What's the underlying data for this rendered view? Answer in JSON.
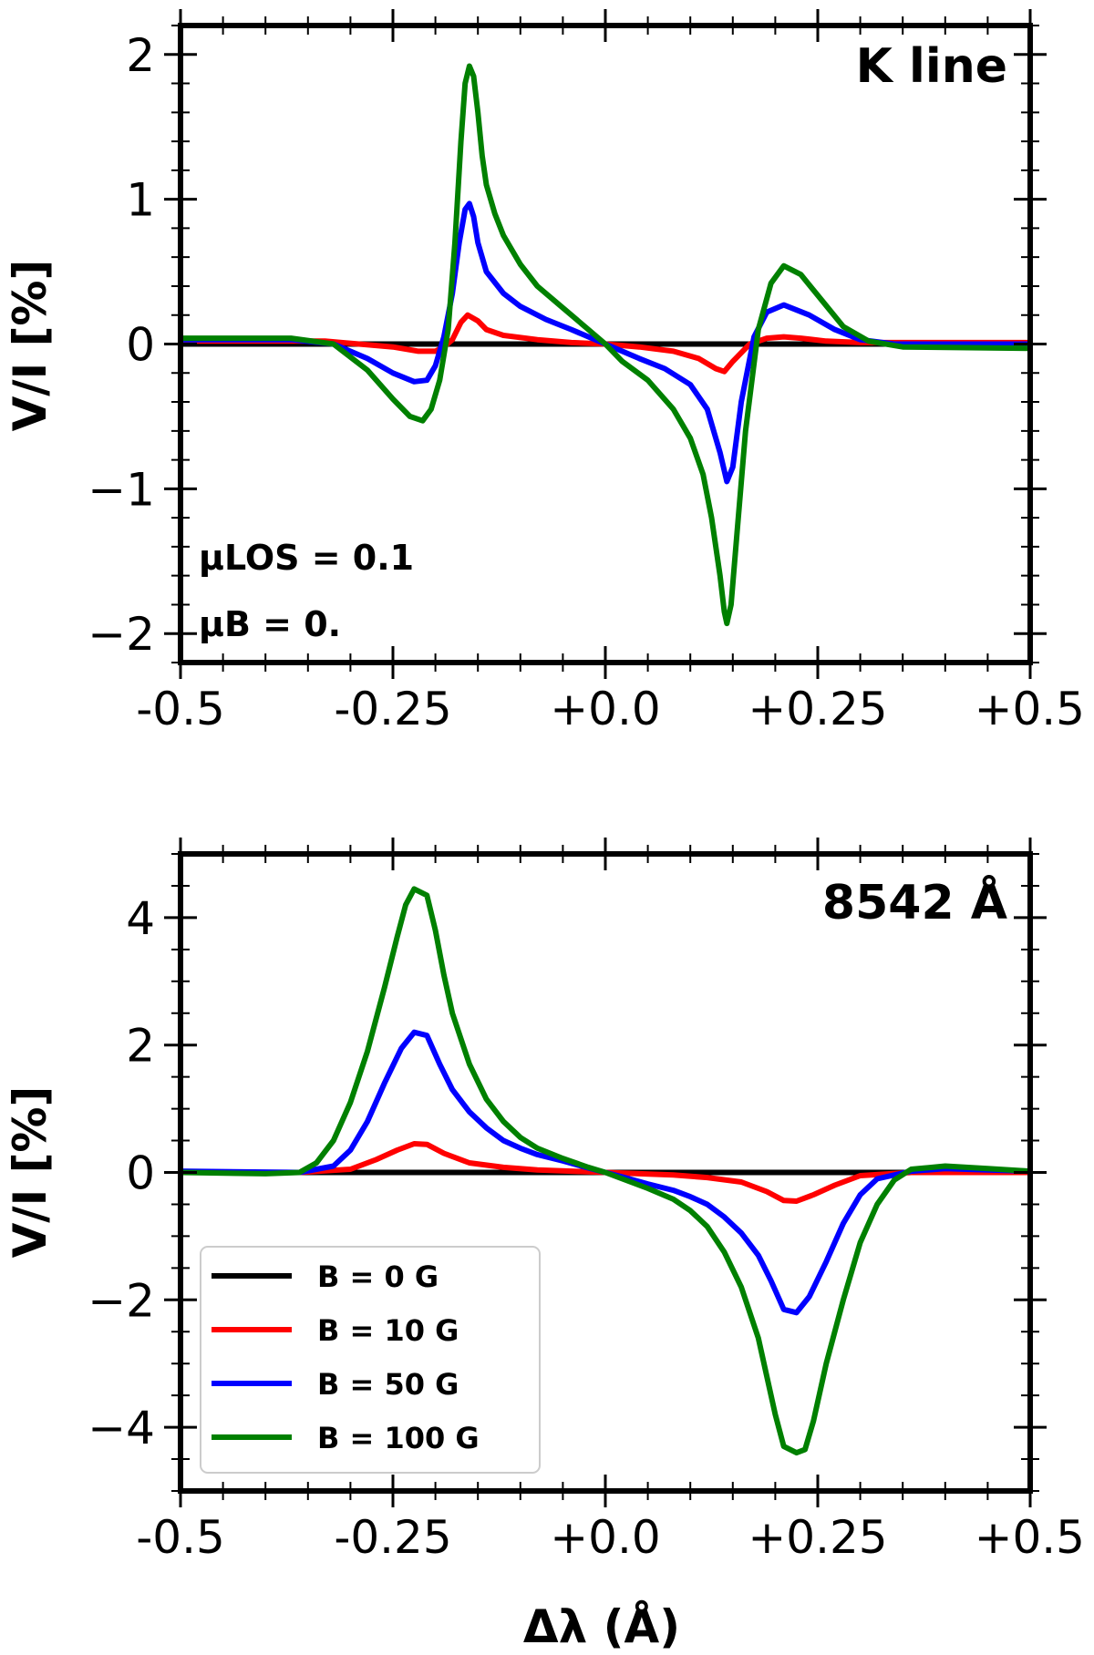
{
  "figure": {
    "xlabel": "Δλ (Å)"
  },
  "legend_entries": [
    {
      "label": "B = 0 G",
      "color": "#000000"
    },
    {
      "label": "B = 10 G",
      "color": "#ff0000"
    },
    {
      "label": "B = 50 G",
      "color": "#0000ff"
    },
    {
      "label": "B = 100 G",
      "color": "#008000"
    }
  ],
  "chart_data": [
    {
      "type": "line",
      "title": "K line",
      "annotations": [
        "μLOS = 0.1",
        "μB = 0."
      ],
      "xlabel": "",
      "ylabel": "V/I [%]",
      "xlim": [
        -0.5,
        0.5
      ],
      "ylim": [
        -2.2,
        2.2
      ],
      "xticks": [
        -0.5,
        -0.25,
        0.0,
        0.25,
        0.5
      ],
      "xtick_labels": [
        "-0.5",
        "-0.25",
        "+0.0",
        "+0.25",
        "+0.5"
      ],
      "yticks": [
        -2,
        -1,
        0,
        1,
        2
      ],
      "ytick_labels": [
        "−2",
        "−1",
        "0",
        "1",
        "2"
      ],
      "minor_y_step": 0.2,
      "minor_x_step": 0.05,
      "series": [
        {
          "name": "B = 0 G",
          "color": "#000000",
          "x": [
            -0.5,
            0.5
          ],
          "y": [
            0,
            0
          ]
        },
        {
          "name": "B = 10 G",
          "color": "#ff0000",
          "x": [
            -0.5,
            -0.33,
            -0.29,
            -0.25,
            -0.22,
            -0.2,
            -0.19,
            -0.18,
            -0.17,
            -0.162,
            -0.15,
            -0.14,
            -0.12,
            -0.08,
            -0.04,
            0,
            0.04,
            0.08,
            0.11,
            0.13,
            0.14,
            0.15,
            0.17,
            0.19,
            0.21,
            0.23,
            0.26,
            0.3,
            0.5
          ],
          "y": [
            0.02,
            0.02,
            0.0,
            -0.02,
            -0.05,
            -0.05,
            -0.02,
            0.03,
            0.15,
            0.2,
            0.16,
            0.1,
            0.06,
            0.03,
            0.01,
            0,
            -0.02,
            -0.05,
            -0.1,
            -0.17,
            -0.19,
            -0.12,
            0.0,
            0.04,
            0.05,
            0.04,
            0.02,
            0.01,
            0.01
          ]
        },
        {
          "name": "B = 50 G",
          "color": "#0000ff",
          "x": [
            -0.5,
            -0.37,
            -0.32,
            -0.28,
            -0.25,
            -0.225,
            -0.21,
            -0.2,
            -0.19,
            -0.18,
            -0.172,
            -0.165,
            -0.16,
            -0.155,
            -0.15,
            -0.14,
            -0.12,
            -0.1,
            -0.07,
            -0.04,
            0,
            0.04,
            0.07,
            0.1,
            0.12,
            0.135,
            0.143,
            0.15,
            0.16,
            0.175,
            0.19,
            0.21,
            0.24,
            0.27,
            0.3,
            0.34,
            0.5
          ],
          "y": [
            0.03,
            0.03,
            0.0,
            -0.1,
            -0.2,
            -0.26,
            -0.25,
            -0.15,
            0.05,
            0.35,
            0.7,
            0.93,
            0.97,
            0.88,
            0.7,
            0.5,
            0.35,
            0.26,
            0.17,
            0.1,
            0,
            -0.1,
            -0.17,
            -0.28,
            -0.45,
            -0.75,
            -0.95,
            -0.85,
            -0.4,
            0.05,
            0.22,
            0.27,
            0.2,
            0.1,
            0.03,
            0.0,
            0.0
          ]
        },
        {
          "name": "B = 100 G",
          "color": "#008000",
          "x": [
            -0.5,
            -0.37,
            -0.32,
            -0.28,
            -0.25,
            -0.23,
            -0.215,
            -0.205,
            -0.195,
            -0.185,
            -0.177,
            -0.17,
            -0.165,
            -0.16,
            -0.155,
            -0.15,
            -0.145,
            -0.14,
            -0.13,
            -0.12,
            -0.1,
            -0.08,
            -0.05,
            -0.02,
            0,
            0.02,
            0.05,
            0.08,
            0.1,
            0.115,
            0.125,
            0.135,
            0.14,
            0.143,
            0.148,
            0.155,
            0.165,
            0.18,
            0.195,
            0.21,
            0.23,
            0.255,
            0.28,
            0.31,
            0.35,
            0.5
          ],
          "y": [
            0.04,
            0.04,
            0.0,
            -0.18,
            -0.38,
            -0.5,
            -0.53,
            -0.45,
            -0.25,
            0.1,
            0.7,
            1.4,
            1.8,
            1.92,
            1.85,
            1.6,
            1.3,
            1.1,
            0.9,
            0.75,
            0.55,
            0.4,
            0.25,
            0.1,
            0,
            -0.12,
            -0.25,
            -0.45,
            -0.65,
            -0.9,
            -1.2,
            -1.6,
            -1.85,
            -1.93,
            -1.8,
            -1.3,
            -0.6,
            0.1,
            0.42,
            0.54,
            0.48,
            0.3,
            0.12,
            0.02,
            -0.02,
            -0.03
          ]
        }
      ]
    },
    {
      "type": "line",
      "title": "8542 Å",
      "xlabel": "Δλ (Å)",
      "ylabel": "V/I [%]",
      "xlim": [
        -0.5,
        0.5
      ],
      "ylim": [
        -5,
        5
      ],
      "xticks": [
        -0.5,
        -0.25,
        0.0,
        0.25,
        0.5
      ],
      "xtick_labels": [
        "-0.5",
        "-0.25",
        "+0.0",
        "+0.25",
        "+0.5"
      ],
      "yticks": [
        -4,
        -2,
        0,
        2,
        4
      ],
      "ytick_labels": [
        "−4",
        "−2",
        "0",
        "2",
        "4"
      ],
      "minor_y_step": 0.5,
      "minor_x_step": 0.05,
      "series": [
        {
          "name": "B = 0 G",
          "color": "#000000",
          "x": [
            -0.5,
            0.5
          ],
          "y": [
            0,
            0
          ]
        },
        {
          "name": "B = 10 G",
          "color": "#ff0000",
          "x": [
            -0.5,
            -0.36,
            -0.3,
            -0.27,
            -0.245,
            -0.225,
            -0.21,
            -0.19,
            -0.16,
            -0.12,
            -0.08,
            -0.04,
            0,
            0.04,
            0.08,
            0.12,
            0.16,
            0.19,
            0.21,
            0.225,
            0.245,
            0.27,
            0.3,
            0.36,
            0.5
          ],
          "y": [
            0.0,
            0.0,
            0.05,
            0.2,
            0.35,
            0.45,
            0.44,
            0.3,
            0.15,
            0.08,
            0.04,
            0.02,
            0,
            -0.02,
            -0.04,
            -0.08,
            -0.15,
            -0.3,
            -0.44,
            -0.45,
            -0.35,
            -0.2,
            -0.05,
            0.0,
            0.0
          ]
        },
        {
          "name": "B = 50 G",
          "color": "#0000ff",
          "x": [
            -0.5,
            -0.36,
            -0.32,
            -0.3,
            -0.28,
            -0.26,
            -0.24,
            -0.225,
            -0.21,
            -0.195,
            -0.18,
            -0.16,
            -0.14,
            -0.12,
            -0.1,
            -0.08,
            -0.05,
            -0.02,
            0,
            0.02,
            0.05,
            0.08,
            0.1,
            0.12,
            0.14,
            0.16,
            0.18,
            0.195,
            0.21,
            0.225,
            0.24,
            0.26,
            0.28,
            0.3,
            0.32,
            0.36,
            0.4,
            0.45,
            0.5
          ],
          "y": [
            0.02,
            0.0,
            0.1,
            0.35,
            0.8,
            1.4,
            1.95,
            2.2,
            2.15,
            1.7,
            1.3,
            0.95,
            0.7,
            0.5,
            0.38,
            0.28,
            0.18,
            0.07,
            0,
            -0.07,
            -0.18,
            -0.28,
            -0.38,
            -0.5,
            -0.7,
            -0.95,
            -1.3,
            -1.7,
            -2.15,
            -2.2,
            -1.95,
            -1.4,
            -0.8,
            -0.35,
            -0.1,
            0.02,
            0.06,
            0.04,
            0.02
          ]
        },
        {
          "name": "B = 100 G",
          "color": "#008000",
          "x": [
            -0.5,
            -0.4,
            -0.36,
            -0.34,
            -0.32,
            -0.3,
            -0.28,
            -0.26,
            -0.245,
            -0.235,
            -0.225,
            -0.21,
            -0.2,
            -0.19,
            -0.18,
            -0.16,
            -0.14,
            -0.12,
            -0.1,
            -0.08,
            -0.05,
            -0.02,
            0,
            0.02,
            0.05,
            0.08,
            0.1,
            0.12,
            0.14,
            0.16,
            0.18,
            0.19,
            0.2,
            0.21,
            0.225,
            0.235,
            0.245,
            0.26,
            0.28,
            0.3,
            0.32,
            0.34,
            0.36,
            0.4,
            0.45,
            0.5
          ],
          "y": [
            0.0,
            -0.02,
            0.0,
            0.15,
            0.5,
            1.1,
            1.9,
            2.9,
            3.7,
            4.2,
            4.45,
            4.35,
            3.8,
            3.1,
            2.5,
            1.7,
            1.15,
            0.8,
            0.55,
            0.38,
            0.22,
            0.08,
            0,
            -0.1,
            -0.25,
            -0.42,
            -0.6,
            -0.85,
            -1.25,
            -1.8,
            -2.6,
            -3.2,
            -3.8,
            -4.3,
            -4.4,
            -4.35,
            -3.9,
            -3.0,
            -2.0,
            -1.1,
            -0.5,
            -0.12,
            0.05,
            0.1,
            0.06,
            0.02
          ]
        }
      ]
    }
  ]
}
